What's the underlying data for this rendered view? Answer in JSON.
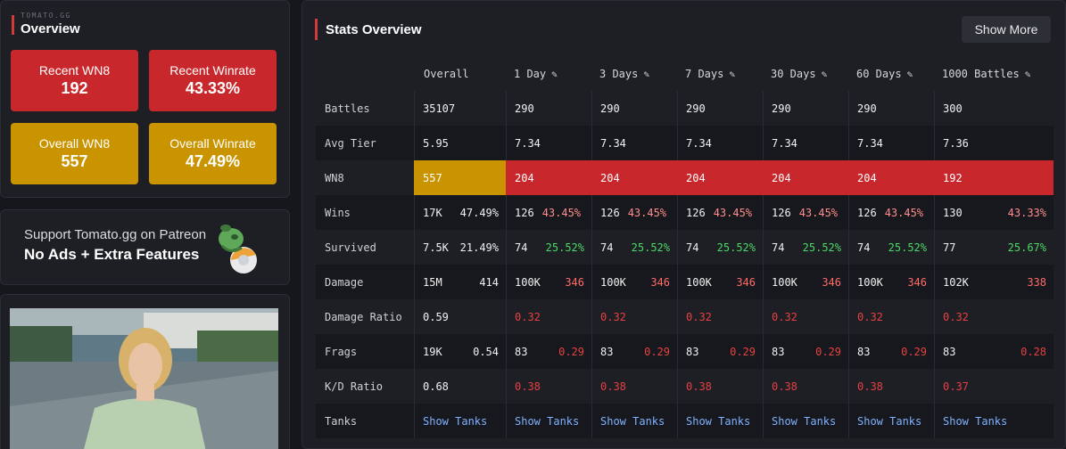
{
  "overview": {
    "brand": "TOMATO.GG",
    "title": "Overview",
    "tiles": [
      {
        "label": "Recent WN8",
        "value": "192"
      },
      {
        "label": "Recent Winrate",
        "value": "43.33%"
      },
      {
        "label": "Overall WN8",
        "value": "557"
      },
      {
        "label": "Overall Winrate",
        "value": "47.49%"
      }
    ]
  },
  "patreon": {
    "line1": "Support Tomato.gg on Patreon",
    "line2": "No Ads + Extra Features"
  },
  "stats": {
    "title": "Stats Overview",
    "show_more": "Show More",
    "columns": [
      "Overall",
      "1 Day",
      "3 Days",
      "7 Days",
      "30 Days",
      "60 Days",
      "1000 Battles"
    ],
    "pencil": "✎",
    "rows": {
      "battles": {
        "label": "Battles",
        "values": [
          "35107",
          "290",
          "290",
          "290",
          "290",
          "290",
          "300"
        ]
      },
      "avg_tier": {
        "label": "Avg Tier",
        "values": [
          "5.95",
          "7.34",
          "7.34",
          "7.34",
          "7.34",
          "7.34",
          "7.36"
        ]
      },
      "wn8": {
        "label": "WN8",
        "values": [
          "557",
          "204",
          "204",
          "204",
          "204",
          "204",
          "192"
        ]
      },
      "wins": {
        "label": "Wins",
        "values": [
          [
            "17K",
            "47.49%"
          ],
          [
            "126",
            "43.45%"
          ],
          [
            "126",
            "43.45%"
          ],
          [
            "126",
            "43.45%"
          ],
          [
            "126",
            "43.45%"
          ],
          [
            "126",
            "43.45%"
          ],
          [
            "130",
            "43.33%"
          ]
        ]
      },
      "survived": {
        "label": "Survived",
        "values": [
          [
            "7.5K",
            "21.49%"
          ],
          [
            "74",
            "25.52%"
          ],
          [
            "74",
            "25.52%"
          ],
          [
            "74",
            "25.52%"
          ],
          [
            "74",
            "25.52%"
          ],
          [
            "74",
            "25.52%"
          ],
          [
            "77",
            "25.67%"
          ]
        ]
      },
      "damage": {
        "label": "Damage",
        "values": [
          [
            "15M",
            "414"
          ],
          [
            "100K",
            "346"
          ],
          [
            "100K",
            "346"
          ],
          [
            "100K",
            "346"
          ],
          [
            "100K",
            "346"
          ],
          [
            "100K",
            "346"
          ],
          [
            "102K",
            "338"
          ]
        ]
      },
      "damage_ratio": {
        "label": "Damage Ratio",
        "values": [
          "0.59",
          "0.32",
          "0.32",
          "0.32",
          "0.32",
          "0.32",
          "0.32"
        ]
      },
      "frags": {
        "label": "Frags",
        "values": [
          [
            "19K",
            "0.54"
          ],
          [
            "83",
            "0.29"
          ],
          [
            "83",
            "0.29"
          ],
          [
            "83",
            "0.29"
          ],
          [
            "83",
            "0.29"
          ],
          [
            "83",
            "0.29"
          ],
          [
            "83",
            "0.28"
          ]
        ]
      },
      "kd_ratio": {
        "label": "K/D Ratio",
        "values": [
          "0.68",
          "0.38",
          "0.38",
          "0.38",
          "0.38",
          "0.38",
          "0.37"
        ]
      },
      "tanks": {
        "label": "Tanks",
        "link": "Show Tanks"
      }
    }
  },
  "colors": {
    "red": "#c8282c",
    "yellow": "#c99400",
    "accent": "#d23a3a",
    "green": "#4cd964",
    "link": "#7fb2ff"
  }
}
